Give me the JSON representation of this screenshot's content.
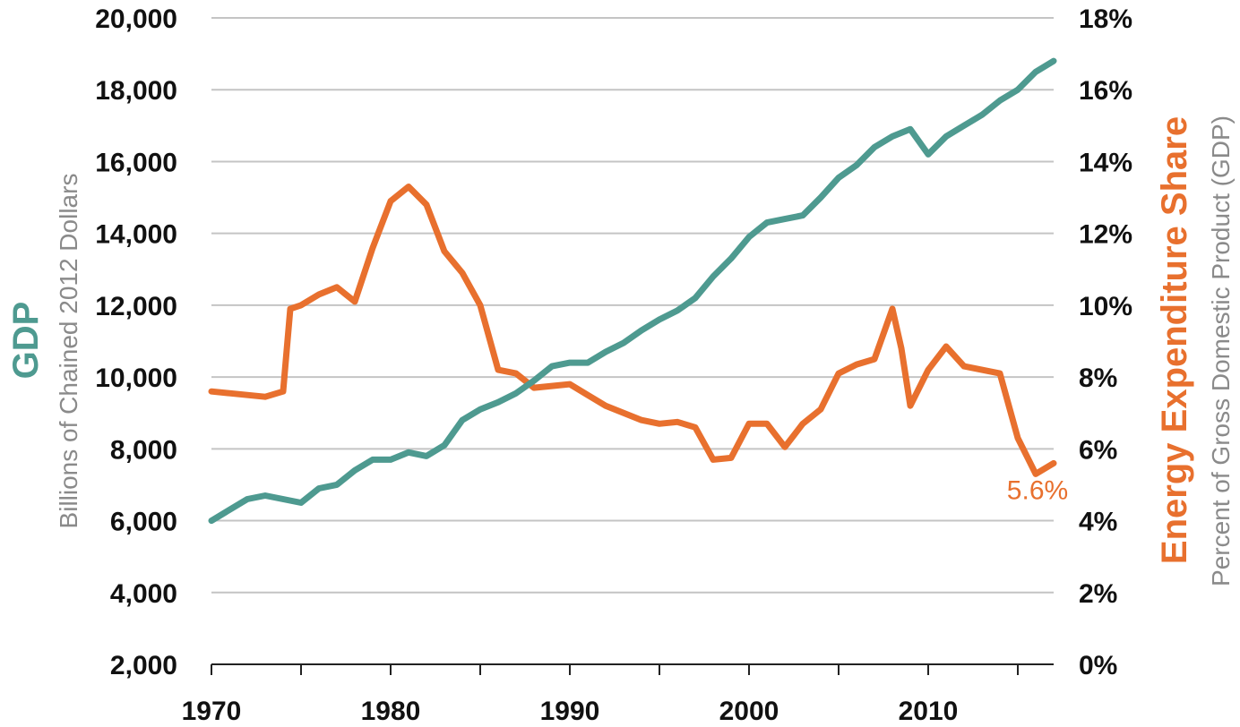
{
  "chart_data": {
    "type": "line",
    "grid": true,
    "left_axis": {
      "title": "GDP",
      "subtitle": "Billions of Chained 2012 Dollars",
      "range": [
        2000,
        20000
      ],
      "ticks": [
        2000,
        4000,
        6000,
        8000,
        10000,
        12000,
        14000,
        16000,
        18000,
        20000
      ],
      "tick_labels": [
        "2,000",
        "4,000",
        "6,000",
        "8,000",
        "10,000",
        "12,000",
        "14,000",
        "16,000",
        "18,000",
        "20,000"
      ]
    },
    "right_axis": {
      "title": "Energy Expenditure Share",
      "subtitle": "Percent of Gross Domestic Product (GDP)",
      "range": [
        0,
        18
      ],
      "ticks": [
        0,
        2,
        4,
        6,
        8,
        10,
        12,
        14,
        16,
        18
      ],
      "tick_labels": [
        "0%",
        "2%",
        "4%",
        "6%",
        "8%",
        "10%",
        "12%",
        "14%",
        "16%",
        "18%"
      ]
    },
    "x_axis": {
      "range": [
        1970,
        2017
      ],
      "ticks": [
        1970,
        1980,
        1990,
        2000,
        2010
      ],
      "tick_labels": [
        "1970",
        "1980",
        "1990",
        "2000",
        "2010"
      ]
    },
    "colors": {
      "gdp": "#4e9a90",
      "energy": "#e8702e",
      "grid": "#c4c4c4",
      "subtitle": "#8a8a8a"
    },
    "series": [
      {
        "name": "GDP",
        "axis": "left",
        "x": [
          1970,
          1971,
          1972,
          1973,
          1974,
          1975,
          1976,
          1977,
          1978,
          1979,
          1980,
          1981,
          1982,
          1983,
          1984,
          1985,
          1986,
          1987,
          1988,
          1989,
          1990,
          1991,
          1992,
          1993,
          1994,
          1995,
          1996,
          1997,
          1998,
          1999,
          2000,
          2001,
          2002,
          2003,
          2004,
          2005,
          2006,
          2007,
          2008,
          2009,
          2010,
          2011,
          2012,
          2013,
          2014,
          2015,
          2016,
          2017
        ],
        "values": [
          6000,
          6300,
          6600,
          6700,
          6600,
          6500,
          6900,
          7000,
          7400,
          7700,
          7700,
          7900,
          7800,
          8100,
          8800,
          9100,
          9300,
          9550,
          9900,
          10300,
          10400,
          10400,
          10700,
          10950,
          11300,
          11600,
          11850,
          12200,
          12800,
          13300,
          13900,
          14300,
          14400,
          14500,
          15000,
          15550,
          15900,
          16400,
          16700,
          16900,
          16200,
          16700,
          17000,
          17300,
          17700,
          18000,
          18500,
          18800
        ]
      },
      {
        "name": "Energy Expenditure Share",
        "axis": "right",
        "x": [
          1970,
          1971,
          1972,
          1973,
          1974,
          1974.4,
          1975,
          1976,
          1977,
          1978,
          1979,
          1980,
          1981,
          1982,
          1983,
          1984,
          1985,
          1986,
          1987,
          1988,
          1989,
          1990,
          1991,
          1992,
          1993,
          1994,
          1995,
          1996,
          1997,
          1998,
          1999,
          2000,
          2001,
          2002,
          2003,
          2004,
          2005,
          2006,
          2007,
          2008,
          2008.5,
          2009,
          2010,
          2011,
          2012,
          2013,
          2014,
          2015,
          2016,
          2017
        ],
        "values": [
          7.6,
          7.55,
          7.5,
          7.45,
          7.6,
          9.9,
          10.0,
          10.3,
          10.5,
          10.1,
          11.6,
          12.9,
          13.3,
          12.8,
          11.5,
          10.9,
          10.0,
          8.2,
          8.1,
          7.7,
          7.75,
          7.8,
          7.5,
          7.2,
          7.0,
          6.8,
          6.7,
          6.75,
          6.6,
          5.7,
          5.75,
          6.7,
          6.7,
          6.05,
          6.7,
          7.1,
          8.1,
          8.35,
          8.5,
          9.9,
          8.8,
          7.2,
          8.2,
          8.85,
          8.3,
          8.2,
          8.1,
          6.3,
          5.3,
          5.6
        ]
      }
    ],
    "annotations": [
      {
        "text": "5.6%",
        "x": 2016.5,
        "y": 5.6,
        "series": "Energy Expenditure Share"
      }
    ]
  }
}
